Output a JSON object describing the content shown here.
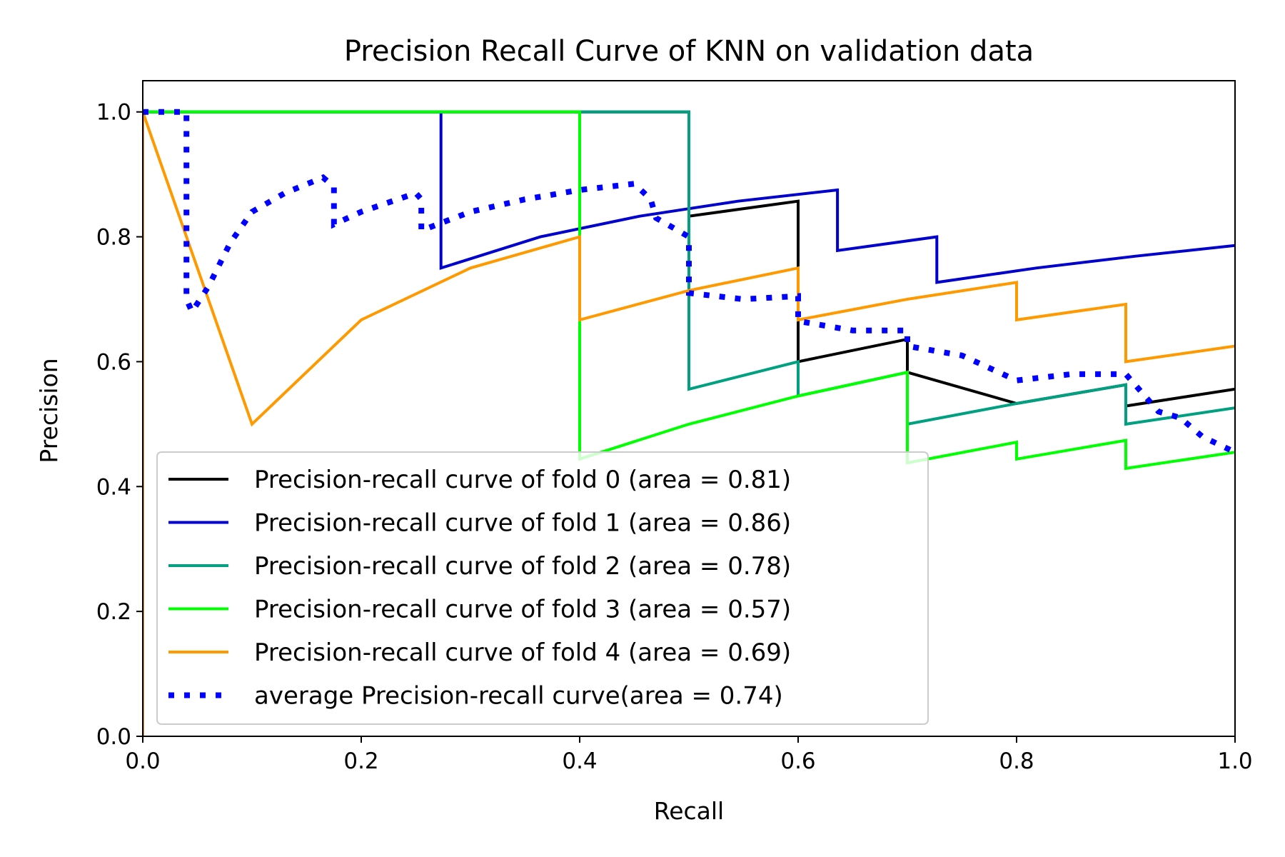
{
  "chart_data": {
    "type": "line",
    "title": "Precision Recall Curve of KNN on validation data",
    "xlabel": "Recall",
    "ylabel": "Precision",
    "xlim": [
      0.0,
      1.0
    ],
    "ylim": [
      0.0,
      1.05
    ],
    "xticks": [
      "0.0",
      "0.2",
      "0.4",
      "0.6",
      "0.8",
      "1.0"
    ],
    "yticks": [
      "0.0",
      "0.2",
      "0.4",
      "0.6",
      "0.8",
      "1.0"
    ],
    "xtick_values": [
      0.0,
      0.2,
      0.4,
      0.6,
      0.8,
      1.0
    ],
    "ytick_values": [
      0.0,
      0.2,
      0.4,
      0.6,
      0.8,
      1.0
    ],
    "grid": false,
    "legend_position": "lower-left",
    "series": [
      {
        "name": "Precision-recall curve of fold 0 (area = 0.81)",
        "color": "#000000",
        "style": "solid",
        "points": [
          [
            0,
            0
          ],
          [
            0,
            1
          ],
          [
            0.5,
            1
          ],
          [
            0.5,
            0.833
          ],
          [
            0.6,
            0.857
          ],
          [
            0.6,
            0.6
          ],
          [
            0.7,
            0.636
          ],
          [
            0.7,
            0.583
          ],
          [
            0.8,
            0.533
          ],
          [
            0.9,
            0.563
          ],
          [
            0.9,
            0.529
          ],
          [
            1.0,
            0.556
          ]
        ]
      },
      {
        "name": "Precision-recall curve of fold 1 (area = 0.86)",
        "color": "#0000cc",
        "style": "solid",
        "points": [
          [
            0,
            0
          ],
          [
            0,
            1
          ],
          [
            0.273,
            1
          ],
          [
            0.273,
            0.75
          ],
          [
            0.364,
            0.8
          ],
          [
            0.455,
            0.833
          ],
          [
            0.545,
            0.857
          ],
          [
            0.636,
            0.875
          ],
          [
            0.636,
            0.778
          ],
          [
            0.727,
            0.8
          ],
          [
            0.727,
            0.727
          ],
          [
            0.818,
            0.75
          ],
          [
            0.909,
            0.769
          ],
          [
            1.0,
            0.786
          ]
        ]
      },
      {
        "name": "Precision-recall curve of fold 2 (area = 0.78)",
        "color": "#00a080",
        "style": "solid",
        "points": [
          [
            0,
            0
          ],
          [
            0,
            1
          ],
          [
            0.5,
            1
          ],
          [
            0.5,
            0.556
          ],
          [
            0.6,
            0.6
          ],
          [
            0.6,
            0.545
          ],
          [
            0.7,
            0.583
          ],
          [
            0.7,
            0.5
          ],
          [
            0.8,
            0.533
          ],
          [
            0.9,
            0.563
          ],
          [
            0.9,
            0.5
          ],
          [
            1.0,
            0.526
          ]
        ]
      },
      {
        "name": "Precision-recall curve of fold 3 (area = 0.57)",
        "color": "#00ff00",
        "style": "solid",
        "points": [
          [
            0,
            0
          ],
          [
            0,
            1
          ],
          [
            0.4,
            1
          ],
          [
            0.4,
            0.444
          ],
          [
            0.5,
            0.5
          ],
          [
            0.6,
            0.545
          ],
          [
            0.7,
            0.583
          ],
          [
            0.7,
            0.438
          ],
          [
            0.8,
            0.471
          ],
          [
            0.8,
            0.444
          ],
          [
            0.9,
            0.474
          ],
          [
            0.9,
            0.429
          ],
          [
            1.0,
            0.455
          ]
        ]
      },
      {
        "name": "Precision-recall curve of fold 4 (area = 0.69)",
        "color": "#ff9900",
        "style": "solid",
        "points": [
          [
            0,
            0
          ],
          [
            0,
            1
          ],
          [
            0.1,
            0.5
          ],
          [
            0.2,
            0.667
          ],
          [
            0.3,
            0.75
          ],
          [
            0.4,
            0.8
          ],
          [
            0.4,
            0.667
          ],
          [
            0.5,
            0.714
          ],
          [
            0.6,
            0.75
          ],
          [
            0.6,
            0.667
          ],
          [
            0.7,
            0.7
          ],
          [
            0.8,
            0.727
          ],
          [
            0.8,
            0.667
          ],
          [
            0.9,
            0.692
          ],
          [
            0.9,
            0.6
          ],
          [
            1.0,
            0.625
          ]
        ]
      },
      {
        "name": "average Precision-recall curve(area = 0.74)",
        "color": "#0000ff",
        "style": "dotted",
        "points": [
          [
            0,
            1
          ],
          [
            0.04,
            1
          ],
          [
            0.04,
            0.7
          ],
          [
            0.045,
            0.68
          ],
          [
            0.06,
            0.72
          ],
          [
            0.08,
            0.79
          ],
          [
            0.1,
            0.84
          ],
          [
            0.13,
            0.87
          ],
          [
            0.165,
            0.895
          ],
          [
            0.175,
            0.88
          ],
          [
            0.175,
            0.82
          ],
          [
            0.2,
            0.84
          ],
          [
            0.25,
            0.87
          ],
          [
            0.255,
            0.86
          ],
          [
            0.255,
            0.81
          ],
          [
            0.3,
            0.84
          ],
          [
            0.35,
            0.86
          ],
          [
            0.4,
            0.875
          ],
          [
            0.45,
            0.885
          ],
          [
            0.465,
            0.86
          ],
          [
            0.47,
            0.83
          ],
          [
            0.49,
            0.81
          ],
          [
            0.5,
            0.8
          ],
          [
            0.5,
            0.71
          ],
          [
            0.55,
            0.7
          ],
          [
            0.6,
            0.705
          ],
          [
            0.6,
            0.665
          ],
          [
            0.65,
            0.65
          ],
          [
            0.7,
            0.65
          ],
          [
            0.7,
            0.625
          ],
          [
            0.75,
            0.61
          ],
          [
            0.8,
            0.57
          ],
          [
            0.85,
            0.58
          ],
          [
            0.9,
            0.58
          ],
          [
            0.93,
            0.52
          ],
          [
            0.95,
            0.51
          ],
          [
            0.97,
            0.48
          ],
          [
            1.0,
            0.455
          ]
        ]
      }
    ]
  }
}
